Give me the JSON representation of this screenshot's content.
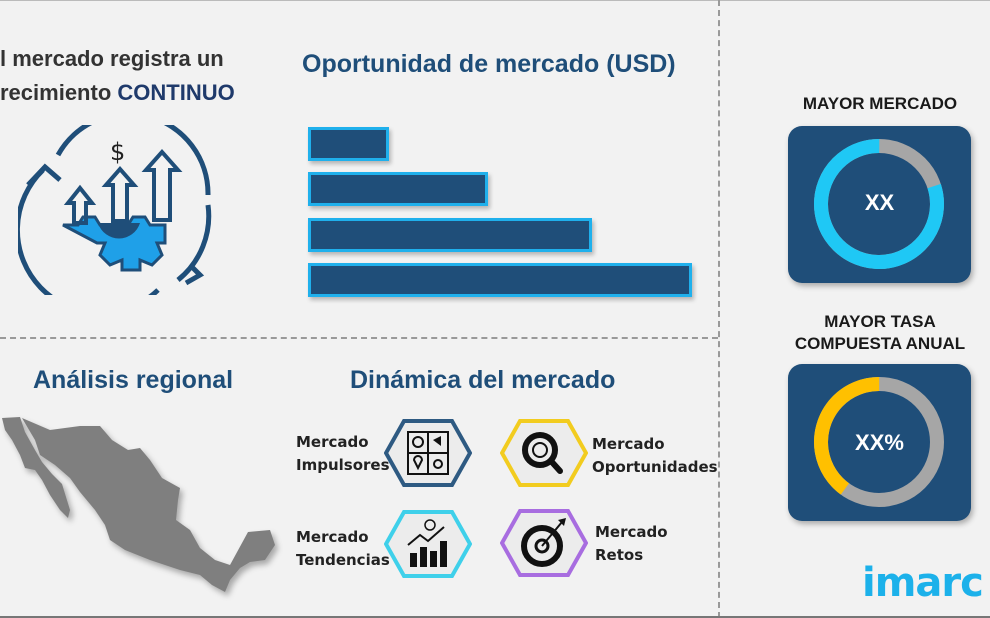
{
  "headline": {
    "line1": "l mercado registra un",
    "line2_prefix": "recimiento ",
    "line2_emphasis": "CONTINUO"
  },
  "opportunity": {
    "title": "Oportunidad de mercado (USD)"
  },
  "chart_data": {
    "type": "bar",
    "orientation": "horizontal",
    "title": "Oportunidad de mercado (USD)",
    "categories": [
      "",
      "",
      "",
      ""
    ],
    "values": [
      21,
      47,
      74,
      100
    ],
    "xlim": [
      0,
      100
    ],
    "colors": {
      "fill": "#1f4e79",
      "border": "#1fb0ec"
    }
  },
  "regional": {
    "title": "Análisis regional"
  },
  "dynamics": {
    "title": "Dinámica del mercado",
    "items": [
      {
        "line1": "Mercado",
        "line2": "Impulsores",
        "icon": "puzzle-icon",
        "color": "#2e5a82"
      },
      {
        "line1": "Mercado",
        "line2": "Oportunidades",
        "icon": "magnifier-dollar-icon",
        "color": "#f2cc1f"
      },
      {
        "line1": "Mercado",
        "line2": "Tendencias",
        "icon": "growth-chart-icon",
        "color": "#3fd0ea"
      },
      {
        "line1": "Mercado",
        "line2": "Retos",
        "icon": "target-icon",
        "color": "#a86de0"
      }
    ]
  },
  "kpis": [
    {
      "title": "MAYOR MERCADO",
      "value": "XX",
      "fraction": 0.8,
      "color": "#1fc8f5",
      "rest_color": "#a6a6a6"
    },
    {
      "title_line1": "MAYOR TASA",
      "title_line2": "COMPUESTA ANUAL",
      "value": "XX%",
      "fraction": 0.4,
      "color": "#ffc000",
      "rest_color": "#a6a6a6"
    }
  ],
  "logo": {
    "text": "imarc"
  }
}
